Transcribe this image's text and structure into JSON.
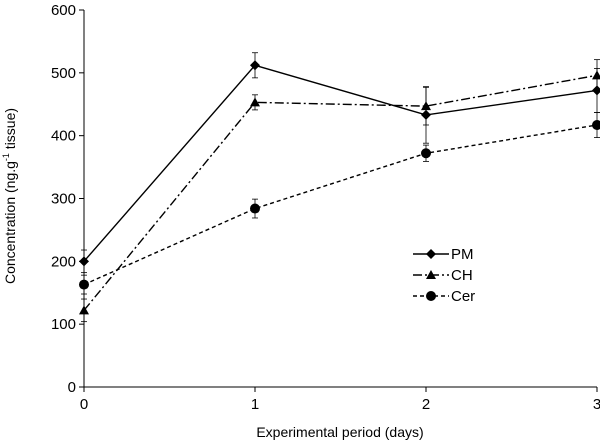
{
  "chart_data": {
    "type": "line",
    "title": "",
    "xlabel": "Experimental period (days)",
    "ylabel": {
      "pre": "Concentration (ng.g",
      "sup": "-1",
      "post": " tissue)"
    },
    "x": [
      0,
      1,
      2,
      3
    ],
    "xlim": [
      0,
      3
    ],
    "ylim": [
      0,
      600
    ],
    "yticks": [
      0,
      100,
      200,
      300,
      400,
      500,
      600
    ],
    "xticks": [
      0,
      1,
      2,
      3
    ],
    "grid": false,
    "legend_position": "right",
    "series": [
      {
        "name": "PM",
        "marker": "diamond",
        "dash": "solid",
        "color": "#000000",
        "values": [
          200,
          512,
          433,
          472
        ],
        "errors": [
          18,
          20,
          45,
          35
        ]
      },
      {
        "name": "CH",
        "marker": "triangle",
        "dash": "dashdot",
        "color": "#000000",
        "values": [
          122,
          453,
          447,
          496
        ],
        "errors": [
          18,
          12,
          30,
          25
        ]
      },
      {
        "name": "Cer",
        "marker": "circle",
        "dash": "dashed",
        "color": "#000000",
        "values": [
          163,
          284,
          372,
          417
        ],
        "errors": [
          15,
          15,
          13,
          20
        ]
      }
    ]
  }
}
